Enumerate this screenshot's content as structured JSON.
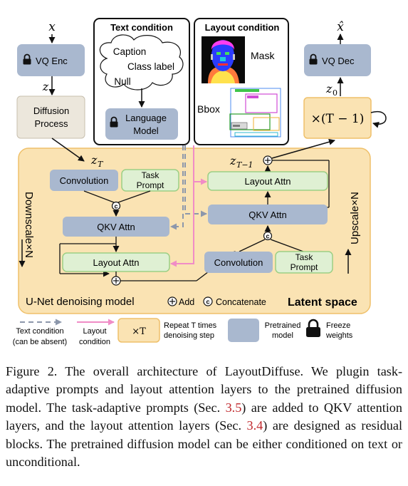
{
  "colors": {
    "latent_bg": "#fae3b3",
    "latent_border": "#efc06a",
    "pretrained_fill": "#a9b8cf",
    "prompt_fill": "#dff0d3",
    "prompt_border": "#9ccf84",
    "diffusion_fill": "#ece7dc",
    "text_cond_arrow": "#8c97ab",
    "layout_arrow": "#f08cc6",
    "caption_ref": "#c0282d"
  },
  "top": {
    "x_label": "x",
    "xhat_label": "x̂",
    "vq_enc": "VQ Enc",
    "vq_dec": "VQ Dec",
    "z_label": "z",
    "z0_label": "z",
    "z0_sub": "0",
    "diffusion_line1": "Diffusion",
    "diffusion_line2": "Process",
    "repeat_box": "×(T − 1)"
  },
  "text_condition": {
    "title": "Text condition",
    "caption": "Caption",
    "class_label": "Class label",
    "null": "Null",
    "lang_line1": "Language",
    "lang_line2": "Model"
  },
  "layout_condition": {
    "title": "Layout condition",
    "mask": "Mask",
    "bbox": "Bbox"
  },
  "unet": {
    "zT": "z",
    "zT_sub": "T",
    "zT1": "z",
    "zT1_sub": "T−1",
    "left_conv": "Convolution",
    "left_task_1": "Task",
    "left_task_2": "Prompt",
    "left_qkv": "QKV Attn",
    "left_layout": "Layout Attn",
    "right_layout": "Layout Attn",
    "right_qkv": "QKV Attn",
    "right_conv": "Convolution",
    "right_task_1": "Task",
    "right_task_2": "Prompt",
    "downscale": "Downscale×N",
    "upscale": "Upscale×N",
    "model_label": "U-Net denoising model",
    "add_label": "Add",
    "concat_label": "Concatenate",
    "latent_label": "Latent space",
    "plus_symbol": "+",
    "concat_symbol": "c"
  },
  "legend": {
    "text_cond_1": "Text condition",
    "text_cond_2": "(can be absent)",
    "layout_1": "Layout",
    "layout_2": "condition",
    "repeat_box": "×T",
    "repeat_1": "Repeat T times",
    "repeat_2": "denoising step",
    "pretrained_1": "Pretrained",
    "pretrained_2": "model",
    "freeze_1": "Freeze",
    "freeze_2": "weights"
  },
  "caption": {
    "part1": "Figure 2.  The overall architecture of LayoutDiffuse.  We plugin task-adaptive prompts and layout attention layers to the pretrained diffusion model. The task-adaptive prompts (Sec. ",
    "ref1": "3.5",
    "part2": ") are added to QKV attention layers, and the layout attention layers (Sec. ",
    "ref2": "3.4",
    "part3": ") are designed as residual blocks.  The pretrained diffusion model can be either conditioned on text or unconditional."
  }
}
